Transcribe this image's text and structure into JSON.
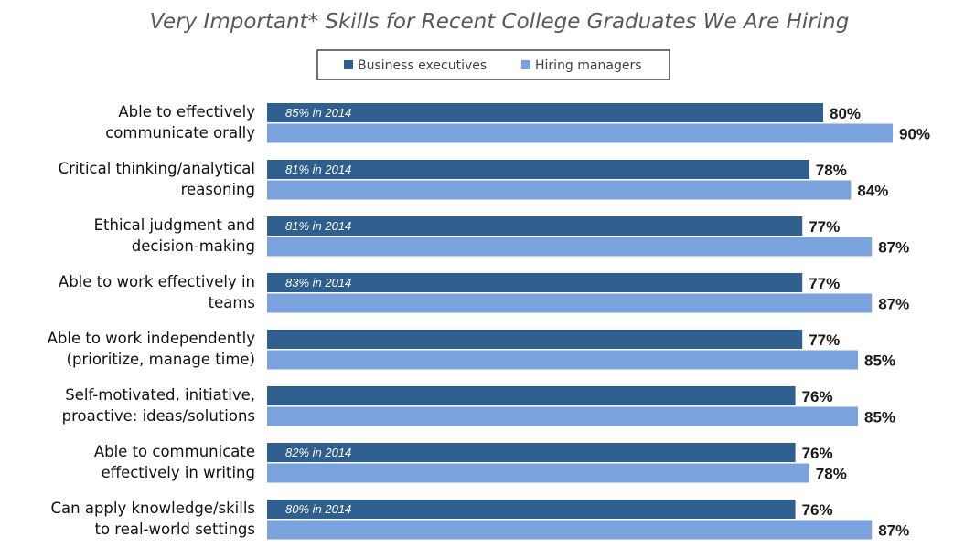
{
  "chart_data": {
    "type": "bar",
    "orientation": "horizontal",
    "title": "Very Important* Skills for Recent College Graduates We Are Hiring",
    "legend_placement": "top",
    "grid": false,
    "xlim": [
      0,
      100
    ],
    "categories": [
      [
        "Able to effectively",
        "communicate orally"
      ],
      [
        "Critical thinking/analytical",
        "reasoning"
      ],
      [
        "Ethical judgment and",
        "decision-making"
      ],
      [
        "Able to work effectively in",
        "teams"
      ],
      [
        "Able to work independently",
        "(prioritize, manage time)"
      ],
      [
        "Self-motivated, initiative,",
        "proactive: ideas/solutions"
      ],
      [
        "Able to communicate",
        "effectively in writing"
      ],
      [
        "Can apply knowledge/skills",
        "to real-world settings"
      ]
    ],
    "series": [
      {
        "name": "Business executives",
        "color": "#2e5f8f",
        "values": [
          80,
          78,
          77,
          77,
          77,
          76,
          76,
          76
        ],
        "value_labels": [
          "80%",
          "78%",
          "77%",
          "77%",
          "77%",
          "76%",
          "76%",
          "76%"
        ],
        "annotations": [
          "85% in 2014",
          "81% in 2014",
          "81% in 2014",
          "83% in 2014",
          "",
          "",
          "82% in 2014",
          "80% in 2014"
        ]
      },
      {
        "name": "Hiring managers",
        "color": "#7aa3dd",
        "values": [
          90,
          84,
          87,
          87,
          85,
          85,
          78,
          87
        ],
        "value_labels": [
          "90%",
          "84%",
          "87%",
          "87%",
          "85%",
          "85%",
          "78%",
          "87%"
        ]
      }
    ]
  }
}
